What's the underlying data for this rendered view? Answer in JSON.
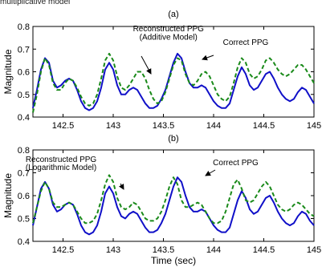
{
  "caption_fragment": "multiplicative model",
  "chart_data": [
    {
      "type": "line",
      "title": "(a)",
      "xlabel": "",
      "ylabel": "Magnitude",
      "xlim": [
        142.2,
        145.0
      ],
      "ylim": [
        0.4,
        0.8
      ],
      "xticks": [
        "142.5",
        "143",
        "143.5",
        "144",
        "144.5",
        "145"
      ],
      "yticks": [
        "0.4",
        "0.5",
        "0.6",
        "0.7",
        "0.8"
      ],
      "grid": false,
      "series": [
        {
          "name": "Correct PPG",
          "color": "#1010c8",
          "style": "solid",
          "x": [
            142.2,
            142.24,
            142.28,
            142.32,
            142.36,
            142.4,
            142.44,
            142.48,
            142.52,
            142.56,
            142.6,
            142.64,
            142.68,
            142.72,
            142.76,
            142.8,
            142.84,
            142.88,
            142.92,
            142.96,
            143.0,
            143.04,
            143.08,
            143.12,
            143.16,
            143.2,
            143.24,
            143.28,
            143.32,
            143.36,
            143.4,
            143.44,
            143.48,
            143.52,
            143.56,
            143.6,
            143.64,
            143.68,
            143.72,
            143.76,
            143.8,
            143.84,
            143.88,
            143.92,
            143.96,
            144.0,
            144.04,
            144.08,
            144.12,
            144.16,
            144.2,
            144.24,
            144.28,
            144.32,
            144.36,
            144.4,
            144.44,
            144.48,
            144.52,
            144.56,
            144.6,
            144.64,
            144.68,
            144.72,
            144.76,
            144.8,
            144.84,
            144.88,
            144.92,
            144.96,
            145.0
          ],
          "y": [
            0.44,
            0.52,
            0.61,
            0.66,
            0.64,
            0.56,
            0.53,
            0.54,
            0.56,
            0.57,
            0.56,
            0.52,
            0.47,
            0.44,
            0.43,
            0.44,
            0.47,
            0.53,
            0.61,
            0.64,
            0.61,
            0.54,
            0.5,
            0.5,
            0.52,
            0.53,
            0.52,
            0.49,
            0.46,
            0.44,
            0.44,
            0.45,
            0.48,
            0.52,
            0.58,
            0.64,
            0.68,
            0.66,
            0.6,
            0.55,
            0.53,
            0.53,
            0.54,
            0.53,
            0.5,
            0.47,
            0.45,
            0.44,
            0.44,
            0.46,
            0.52,
            0.58,
            0.62,
            0.59,
            0.54,
            0.52,
            0.53,
            0.56,
            0.59,
            0.6,
            0.57,
            0.53,
            0.5,
            0.48,
            0.47,
            0.48,
            0.51,
            0.53,
            0.52,
            0.49,
            0.46
          ]
        },
        {
          "name": "Reconstructed PPG (Additive Model)",
          "color": "#1a8a1a",
          "style": "dashed",
          "x": [
            142.2,
            142.24,
            142.28,
            142.32,
            142.36,
            142.4,
            142.44,
            142.48,
            142.52,
            142.56,
            142.6,
            142.64,
            142.68,
            142.72,
            142.76,
            142.8,
            142.84,
            142.88,
            142.92,
            142.96,
            143.0,
            143.04,
            143.08,
            143.12,
            143.16,
            143.2,
            143.24,
            143.28,
            143.32,
            143.36,
            143.4,
            143.44,
            143.48,
            143.52,
            143.56,
            143.6,
            143.64,
            143.68,
            143.72,
            143.76,
            143.8,
            143.84,
            143.88,
            143.92,
            143.96,
            144.0,
            144.04,
            144.08,
            144.12,
            144.16,
            144.2,
            144.24,
            144.28,
            144.32,
            144.36,
            144.4,
            144.44,
            144.48,
            144.52,
            144.56,
            144.6,
            144.64,
            144.68,
            144.72,
            144.76,
            144.8,
            144.84,
            144.88,
            144.92,
            144.96,
            145.0
          ],
          "y": [
            0.42,
            0.5,
            0.6,
            0.66,
            0.63,
            0.55,
            0.52,
            0.52,
            0.55,
            0.57,
            0.56,
            0.53,
            0.49,
            0.46,
            0.45,
            0.46,
            0.5,
            0.57,
            0.65,
            0.68,
            0.65,
            0.58,
            0.53,
            0.52,
            0.54,
            0.57,
            0.6,
            0.6,
            0.57,
            0.52,
            0.48,
            0.46,
            0.47,
            0.51,
            0.57,
            0.63,
            0.66,
            0.65,
            0.59,
            0.55,
            0.54,
            0.56,
            0.59,
            0.6,
            0.58,
            0.54,
            0.5,
            0.48,
            0.47,
            0.49,
            0.55,
            0.62,
            0.66,
            0.64,
            0.59,
            0.57,
            0.58,
            0.61,
            0.65,
            0.66,
            0.64,
            0.61,
            0.59,
            0.58,
            0.59,
            0.61,
            0.63,
            0.63,
            0.61,
            0.58,
            0.55
          ]
        }
      ],
      "annotations": [
        {
          "text": "Reconstructed PPG",
          "x": 143.55,
          "y": 0.778
        },
        {
          "text": "(Additive Model)",
          "x": 143.55,
          "y": 0.742
        },
        {
          "text": "Correct PPG",
          "x": 144.32,
          "y": 0.718
        }
      ]
    },
    {
      "type": "line",
      "title": "(b)",
      "xlabel": "Time (sec)",
      "ylabel": "Magnitude",
      "xlim": [
        142.2,
        145.0
      ],
      "ylim": [
        0.4,
        0.8
      ],
      "xticks": [
        "142.5",
        "143",
        "143.5",
        "144",
        "144.5",
        "145"
      ],
      "yticks": [
        "0.4",
        "0.5",
        "0.6",
        "0.7",
        "0.8"
      ],
      "grid": false,
      "series": [
        {
          "name": "Correct PPG",
          "color": "#1010c8",
          "style": "solid",
          "x": [
            142.2,
            142.24,
            142.28,
            142.32,
            142.36,
            142.4,
            142.44,
            142.48,
            142.52,
            142.56,
            142.6,
            142.64,
            142.68,
            142.72,
            142.76,
            142.8,
            142.84,
            142.88,
            142.92,
            142.96,
            143.0,
            143.04,
            143.08,
            143.12,
            143.16,
            143.2,
            143.24,
            143.28,
            143.32,
            143.36,
            143.4,
            143.44,
            143.48,
            143.52,
            143.56,
            143.6,
            143.64,
            143.68,
            143.72,
            143.76,
            143.8,
            143.84,
            143.88,
            143.92,
            143.96,
            144.0,
            144.04,
            144.08,
            144.12,
            144.16,
            144.2,
            144.24,
            144.28,
            144.32,
            144.36,
            144.4,
            144.44,
            144.48,
            144.52,
            144.56,
            144.6,
            144.64,
            144.68,
            144.72,
            144.76,
            144.8,
            144.84,
            144.88,
            144.92,
            144.96,
            145.0
          ],
          "y": [
            0.47,
            0.55,
            0.63,
            0.66,
            0.63,
            0.56,
            0.53,
            0.54,
            0.56,
            0.57,
            0.56,
            0.52,
            0.47,
            0.44,
            0.43,
            0.44,
            0.47,
            0.53,
            0.61,
            0.64,
            0.61,
            0.55,
            0.51,
            0.5,
            0.52,
            0.53,
            0.52,
            0.49,
            0.46,
            0.44,
            0.44,
            0.45,
            0.48,
            0.52,
            0.58,
            0.64,
            0.68,
            0.66,
            0.6,
            0.55,
            0.53,
            0.53,
            0.54,
            0.53,
            0.5,
            0.47,
            0.45,
            0.44,
            0.44,
            0.46,
            0.52,
            0.58,
            0.62,
            0.59,
            0.54,
            0.52,
            0.53,
            0.56,
            0.59,
            0.6,
            0.57,
            0.53,
            0.5,
            0.48,
            0.47,
            0.48,
            0.51,
            0.53,
            0.52,
            0.49,
            0.47
          ]
        },
        {
          "name": "Reconstructed PPG (Logarithmic Model)",
          "color": "#1a8a1a",
          "style": "dashed",
          "x": [
            142.2,
            142.24,
            142.28,
            142.32,
            142.36,
            142.4,
            142.44,
            142.48,
            142.52,
            142.56,
            142.6,
            142.64,
            142.68,
            142.72,
            142.76,
            142.8,
            142.84,
            142.88,
            142.92,
            142.96,
            143.0,
            143.04,
            143.08,
            143.12,
            143.16,
            143.2,
            143.24,
            143.28,
            143.32,
            143.36,
            143.4,
            143.44,
            143.48,
            143.52,
            143.56,
            143.6,
            143.64,
            143.68,
            143.72,
            143.76,
            143.8,
            143.84,
            143.88,
            143.92,
            143.96,
            144.0,
            144.04,
            144.08,
            144.12,
            144.16,
            144.2,
            144.24,
            144.28,
            144.32,
            144.36,
            144.4,
            144.44,
            144.48,
            144.52,
            144.56,
            144.6,
            144.64,
            144.68,
            144.72,
            144.76,
            144.8,
            144.84,
            144.88,
            144.92,
            144.96,
            145.0
          ],
          "y": [
            0.48,
            0.55,
            0.62,
            0.66,
            0.63,
            0.57,
            0.55,
            0.55,
            0.56,
            0.57,
            0.56,
            0.53,
            0.5,
            0.48,
            0.48,
            0.49,
            0.52,
            0.58,
            0.65,
            0.69,
            0.66,
            0.59,
            0.55,
            0.54,
            0.55,
            0.57,
            0.56,
            0.53,
            0.5,
            0.49,
            0.49,
            0.5,
            0.53,
            0.58,
            0.64,
            0.68,
            0.65,
            0.58,
            0.55,
            0.55,
            0.56,
            0.57,
            0.56,
            0.53,
            0.5,
            0.48,
            0.48,
            0.49,
            0.53,
            0.59,
            0.65,
            0.67,
            0.63,
            0.58,
            0.57,
            0.58,
            0.61,
            0.64,
            0.66,
            0.64,
            0.6,
            0.56,
            0.54,
            0.53,
            0.54,
            0.56,
            0.57,
            0.56,
            0.54,
            0.52,
            0.51
          ]
        }
      ],
      "annotations": [
        {
          "text": "Reconstructed PPG",
          "x": 142.48,
          "y": 0.748
        },
        {
          "text": "(Logarithmic Model)",
          "x": 142.48,
          "y": 0.712
        },
        {
          "text": "Correct PPG",
          "x": 144.22,
          "y": 0.733
        }
      ]
    }
  ]
}
